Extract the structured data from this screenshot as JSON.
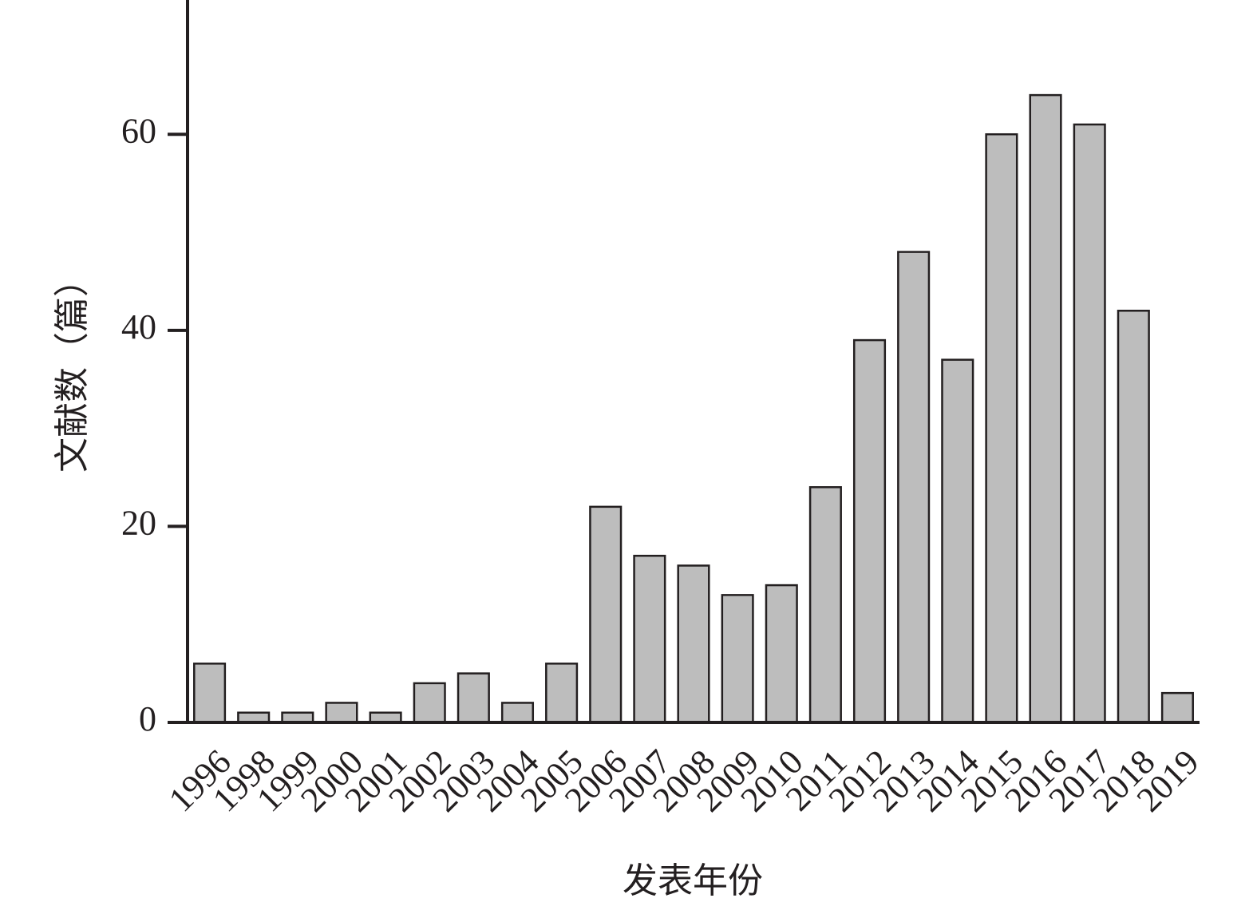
{
  "chart_data": {
    "type": "bar",
    "x_label": "发表年份",
    "y_label": "文献数（篇）",
    "categories": [
      "1996",
      "1998",
      "1999",
      "2000",
      "2001",
      "2002",
      "2003",
      "2004",
      "2005",
      "2006",
      "2007",
      "2008",
      "2009",
      "2010",
      "2011",
      "2012",
      "2013",
      "2014",
      "2015",
      "2016",
      "2017",
      "2018",
      "2019"
    ],
    "values": [
      6,
      1,
      1,
      2,
      1,
      4,
      5,
      2,
      6,
      22,
      17,
      16,
      13,
      14,
      24,
      39,
      48,
      37,
      60,
      64,
      61,
      42,
      3
    ],
    "color": "#bdbdbd",
    "ylim": [
      0,
      73.7
    ],
    "yticks": [
      0,
      20,
      40,
      60
    ]
  }
}
